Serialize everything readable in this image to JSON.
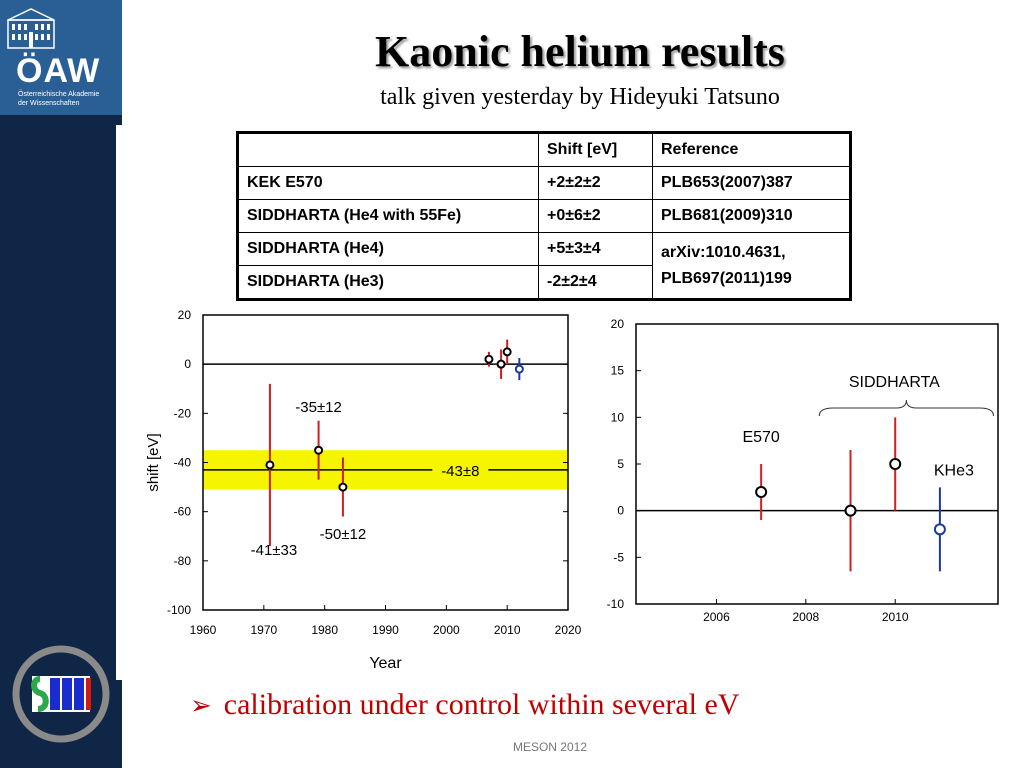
{
  "logo": {
    "name": "ÖAW",
    "subtitle_line1": "Österreichische Akademie",
    "subtitle_line2": "der Wissenschaften"
  },
  "slide": {
    "title": "Kaonic helium results",
    "subtitle": "talk given yesterday by Hideyuki Tatsuno",
    "bullet": "calibration under control within several eV",
    "footer": "MESON 2012"
  },
  "table": {
    "headers": [
      "",
      "Shift [eV]",
      "Reference"
    ],
    "rows": [
      {
        "experiment": "KEK E570",
        "shift": "+2±2±2",
        "reference": "PLB653(2007)387"
      },
      {
        "experiment": "SIDDHARTA (He4 with 55Fe)",
        "shift": "+0±6±2",
        "reference": "PLB681(2009)310"
      },
      {
        "experiment": "SIDDHARTA (He4)",
        "shift": "+5±3±4",
        "reference": "arXiv:1010.4631,"
      },
      {
        "experiment": "SIDDHARTA (He3)",
        "shift": "-2±2±4",
        "reference": "PLB697(2011)199"
      }
    ]
  },
  "chart_data": [
    {
      "type": "scatter",
      "xlabel": "Year",
      "ylabel": "shift [eV]",
      "xlim": [
        1960,
        2020
      ],
      "ylim": [
        -100,
        20
      ],
      "xticks": [
        1960,
        1970,
        1980,
        1990,
        2000,
        2010,
        2020
      ],
      "yticks": [
        20,
        0,
        -20,
        -40,
        -60,
        -80,
        -100
      ],
      "band": {
        "center": -43,
        "low": -51,
        "high": -35,
        "label": "-43±8",
        "color": "#f5f500"
      },
      "points": [
        {
          "x": 1971,
          "y": -41,
          "low": -74,
          "high": -8,
          "label": "-41±33",
          "color": "#000000"
        },
        {
          "x": 1979,
          "y": -35,
          "low": -47,
          "high": -23,
          "label": "-35±12",
          "color": "#000000"
        },
        {
          "x": 1983,
          "y": -50,
          "low": -62,
          "high": -38,
          "label": "-50±12",
          "color": "#000000"
        },
        {
          "x": 2007,
          "y": 2,
          "low": -1,
          "high": 5,
          "label": "",
          "color": "#000000"
        },
        {
          "x": 2009,
          "y": 0,
          "low": -6,
          "high": 6,
          "label": "",
          "color": "#000000"
        },
        {
          "x": 2010,
          "y": 5,
          "low": 0,
          "high": 10,
          "label": "",
          "color": "#000000"
        },
        {
          "x": 2012,
          "y": -2,
          "low": -6.5,
          "high": 2.5,
          "label": "",
          "color": "#1a3a9e"
        }
      ]
    },
    {
      "type": "scatter",
      "xlim": [
        2004.2,
        2012.3
      ],
      "ylim": [
        -10,
        20
      ],
      "xticks": [
        2006,
        2008,
        2010
      ],
      "yticks": [
        20,
        15,
        10,
        5,
        0,
        -5,
        -10
      ],
      "bracket_label": "SIDDHARTA",
      "points": [
        {
          "x": 2007,
          "y": 2,
          "low": -1,
          "high": 5,
          "label": "E570",
          "color": "#000000"
        },
        {
          "x": 2009,
          "y": 0,
          "low": -6.5,
          "high": 6.5,
          "label": "",
          "color": "#000000"
        },
        {
          "x": 2010,
          "y": 5,
          "low": 0,
          "high": 10,
          "label": "",
          "color": "#000000"
        },
        {
          "x": 2011,
          "y": -2,
          "low": -6.5,
          "high": 2.5,
          "label": "KHe3",
          "color": "#1a3a9e"
        }
      ]
    }
  ],
  "colors": {
    "sidebar": "#0f2647",
    "logo_bg": "#2a5f96",
    "errorbar": "#d11f1f",
    "accent_red": "#c00000"
  }
}
